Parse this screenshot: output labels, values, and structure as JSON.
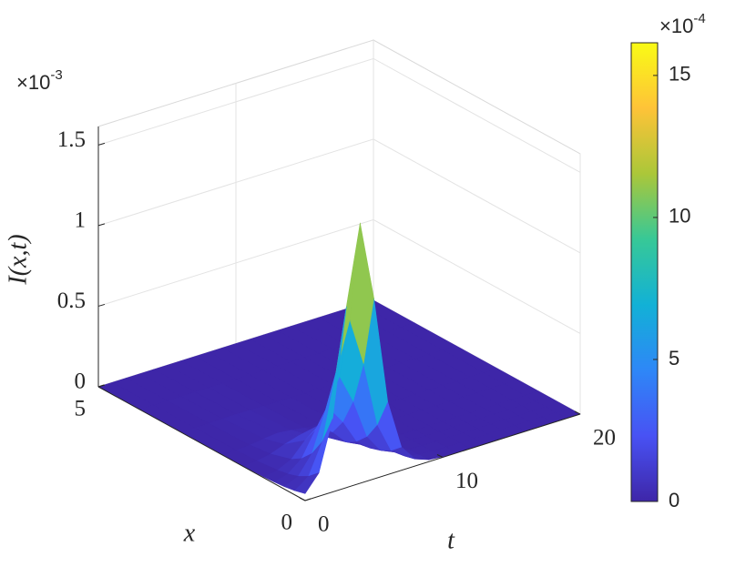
{
  "chart_data": {
    "type": "surface",
    "xlabel": "x",
    "ylabel": "t",
    "zlabel": "I(x,t)",
    "x": [
      0,
      0.25,
      0.5,
      0.75,
      1,
      1.5,
      2,
      3,
      4,
      5
    ],
    "t": [
      0,
      1,
      2,
      3,
      4,
      5,
      6,
      7,
      8,
      9,
      10,
      11,
      12,
      13,
      14,
      15,
      16,
      17,
      18,
      19,
      20
    ],
    "z": [
      [
        0.043,
        0.145,
        0.454,
        1.122,
        1.615,
        1.122,
        0.454,
        0.145,
        0.043,
        0.012,
        0.004,
        0.001,
        0,
        0,
        0,
        0,
        0,
        0,
        0,
        0,
        0
      ],
      [
        0.026,
        0.088,
        0.276,
        0.681,
        0.98,
        0.681,
        0.276,
        0.088,
        0.026,
        0.007,
        0.002,
        0.001,
        0,
        0,
        0,
        0,
        0,
        0,
        0,
        0,
        0
      ],
      [
        0.016,
        0.053,
        0.167,
        0.413,
        0.594,
        0.413,
        0.167,
        0.053,
        0.016,
        0.004,
        0.001,
        0,
        0,
        0,
        0,
        0,
        0,
        0,
        0,
        0,
        0
      ],
      [
        0.01,
        0.032,
        0.101,
        0.25,
        0.36,
        0.25,
        0.101,
        0.032,
        0.01,
        0.003,
        0.001,
        0,
        0,
        0,
        0,
        0,
        0,
        0,
        0,
        0,
        0
      ],
      [
        0.006,
        0.02,
        0.061,
        0.151,
        0.218,
        0.151,
        0.061,
        0.02,
        0.006,
        0.002,
        0.001,
        0,
        0,
        0,
        0,
        0,
        0,
        0,
        0,
        0,
        0
      ],
      [
        0.002,
        0.007,
        0.023,
        0.056,
        0.081,
        0.056,
        0.023,
        0.007,
        0.002,
        0.001,
        0,
        0,
        0,
        0,
        0,
        0,
        0,
        0,
        0,
        0,
        0
      ],
      [
        0.001,
        0.003,
        0.008,
        0.02,
        0.029,
        0.02,
        0.008,
        0.003,
        0.001,
        0,
        0,
        0,
        0,
        0,
        0,
        0,
        0,
        0,
        0,
        0,
        0
      ],
      [
        0,
        0,
        0.001,
        0.003,
        0.004,
        0.003,
        0.001,
        0,
        0,
        0,
        0,
        0,
        0,
        0,
        0,
        0,
        0,
        0,
        0,
        0,
        0
      ],
      [
        0,
        0,
        0,
        0,
        0.001,
        0,
        0,
        0,
        0,
        0,
        0,
        0,
        0,
        0,
        0,
        0,
        0,
        0,
        0,
        0,
        0
      ],
      [
        0,
        0,
        0,
        0,
        0,
        0,
        0,
        0,
        0,
        0,
        0,
        0,
        0,
        0,
        0,
        0,
        0,
        0,
        0,
        0,
        0
      ]
    ],
    "xlim": [
      0,
      5
    ],
    "xticks": [
      0,
      5
    ],
    "tlim": [
      0,
      20
    ],
    "tticks": [
      0,
      10,
      20
    ],
    "zlim": [
      0,
      1.615
    ],
    "zticks": [
      0,
      0.5,
      1,
      1.5
    ],
    "zmultiplier": {
      "base": "×10",
      "exponent": "-3"
    },
    "grid": true,
    "colormap": "parula",
    "colorbar": {
      "clim": [
        0,
        16.15
      ],
      "ticks": [
        0,
        5,
        10,
        15
      ],
      "multiplier": {
        "base": "×10",
        "exponent": "-4"
      }
    }
  }
}
